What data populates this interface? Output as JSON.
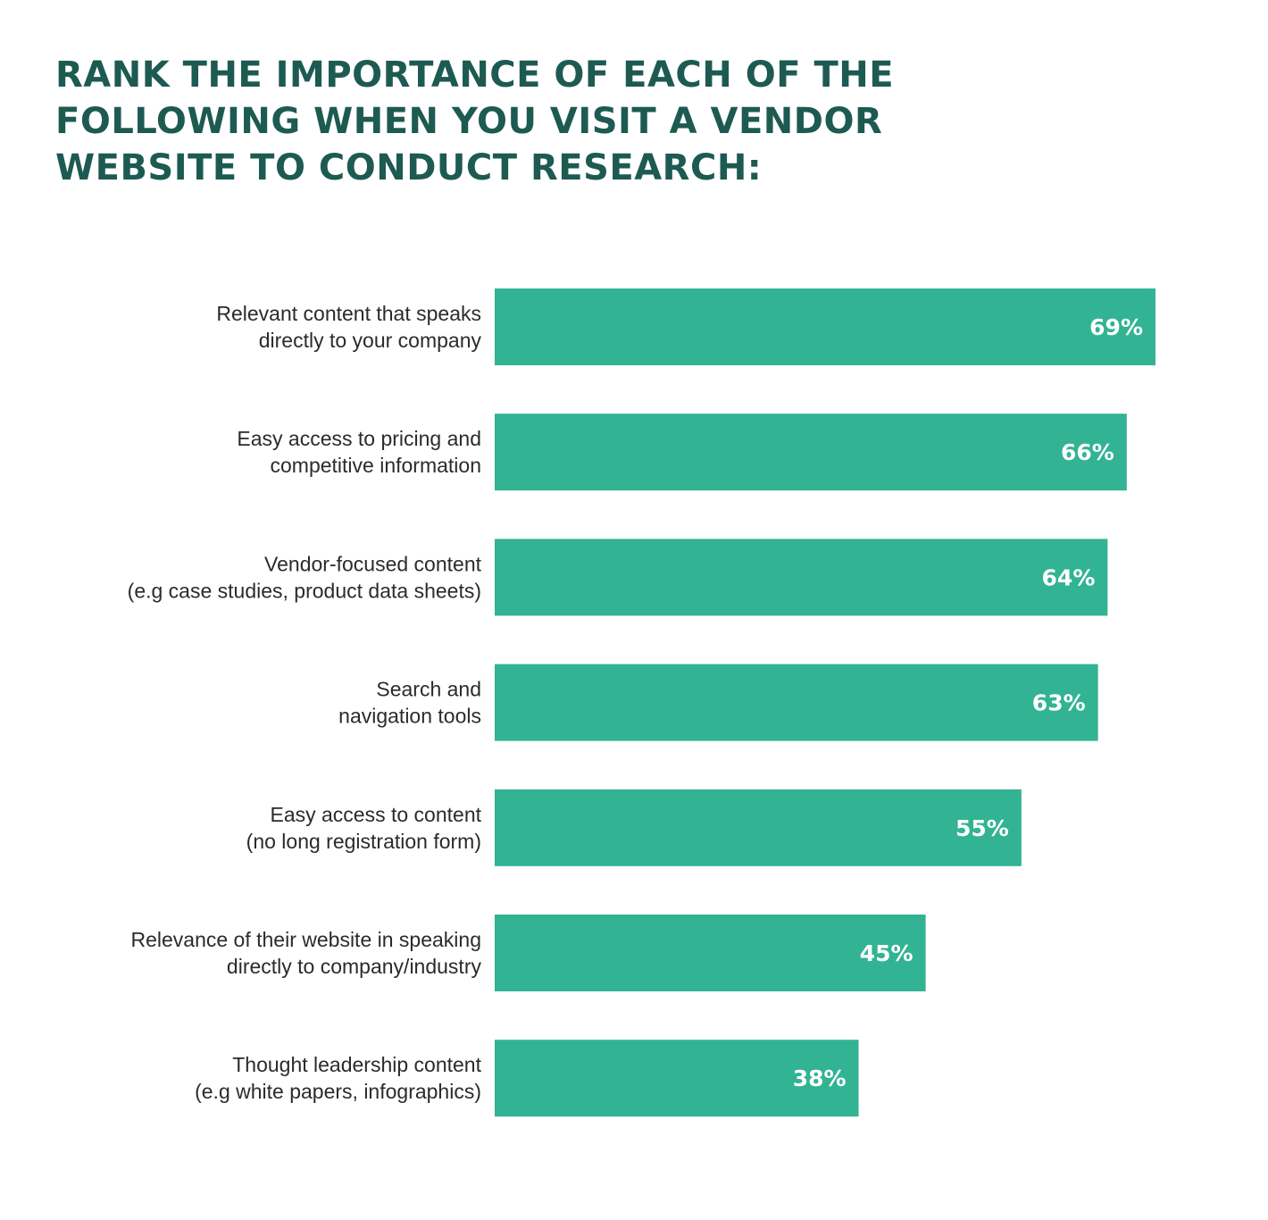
{
  "title_lines": [
    "RANK THE IMPORTANCE OF EACH OF THE",
    "FOLLOWING WHEN YOU VISIT A VENDOR",
    "WEBSITE TO CONDUCT RESEARCH:"
  ],
  "colors": {
    "title": "#1d5a52",
    "bar": "#32b494",
    "value_text": "#ffffff",
    "label_text": "#2b2b2b"
  },
  "chart_data": {
    "type": "bar",
    "orientation": "horizontal",
    "title": "RANK THE IMPORTANCE OF EACH OF THE FOLLOWING WHEN YOU VISIT A VENDOR WEBSITE TO CONDUCT RESEARCH:",
    "xlabel": "",
    "ylabel": "",
    "unit": "%",
    "xlim": [
      0,
      100
    ],
    "grid": false,
    "legend": "none",
    "categories": [
      [
        "Relevant content that speaks",
        "directly to your company"
      ],
      [
        "Easy access to pricing and",
        "competitive information"
      ],
      [
        "Vendor-focused content",
        "(e.g case studies, product data sheets)"
      ],
      [
        "Search and",
        "navigation tools"
      ],
      [
        "Easy access to content",
        "(no long registration form)"
      ],
      [
        "Relevance of their website in speaking",
        "directly to company/industry"
      ],
      [
        "Thought leadership content",
        "(e.g white papers, infographics)"
      ]
    ],
    "values": [
      69,
      66,
      64,
      63,
      55,
      45,
      38
    ],
    "value_labels": [
      "69%",
      "66%",
      "64%",
      "63%",
      "55%",
      "45%",
      "38%"
    ]
  }
}
